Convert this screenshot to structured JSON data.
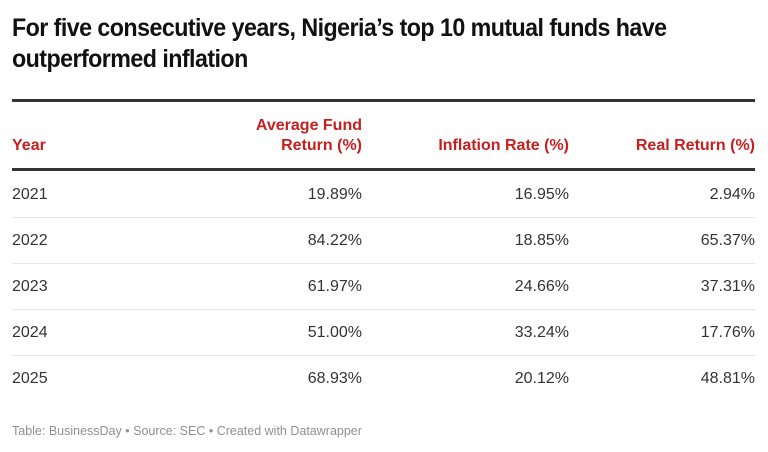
{
  "title": "For five consecutive years, Nigeria’s top 10 mutual funds have outperformed inflation",
  "colors": {
    "header_text": "#c81e1e",
    "rule": "#333333",
    "separator": "#e6e6e6",
    "footer_text": "#909090"
  },
  "table": {
    "columns": [
      {
        "label": "Year",
        "align": "left"
      },
      {
        "label_line1": "Average Fund",
        "label_line2": "Return (%)",
        "align": "right"
      },
      {
        "label": "Inflation Rate (%)",
        "align": "right"
      },
      {
        "label": "Real Return (%)",
        "align": "right"
      }
    ],
    "rows": [
      {
        "year": "2021",
        "avg_fund_return": "19.89%",
        "inflation_rate": "16.95%",
        "real_return": "2.94%"
      },
      {
        "year": "2022",
        "avg_fund_return": "84.22%",
        "inflation_rate": "18.85%",
        "real_return": "65.37%"
      },
      {
        "year": "2023",
        "avg_fund_return": "61.97%",
        "inflation_rate": "24.66%",
        "real_return": "37.31%"
      },
      {
        "year": "2024",
        "avg_fund_return": "51.00%",
        "inflation_rate": "33.24%",
        "real_return": "17.76%"
      },
      {
        "year": "2025",
        "avg_fund_return": "68.93%",
        "inflation_rate": "20.12%",
        "real_return": "48.81%"
      }
    ]
  },
  "footer": {
    "table_credit": "Table: BusinessDay",
    "separator": " • ",
    "source": "Source: SEC",
    "created_with": "Created with Datawrapper"
  }
}
